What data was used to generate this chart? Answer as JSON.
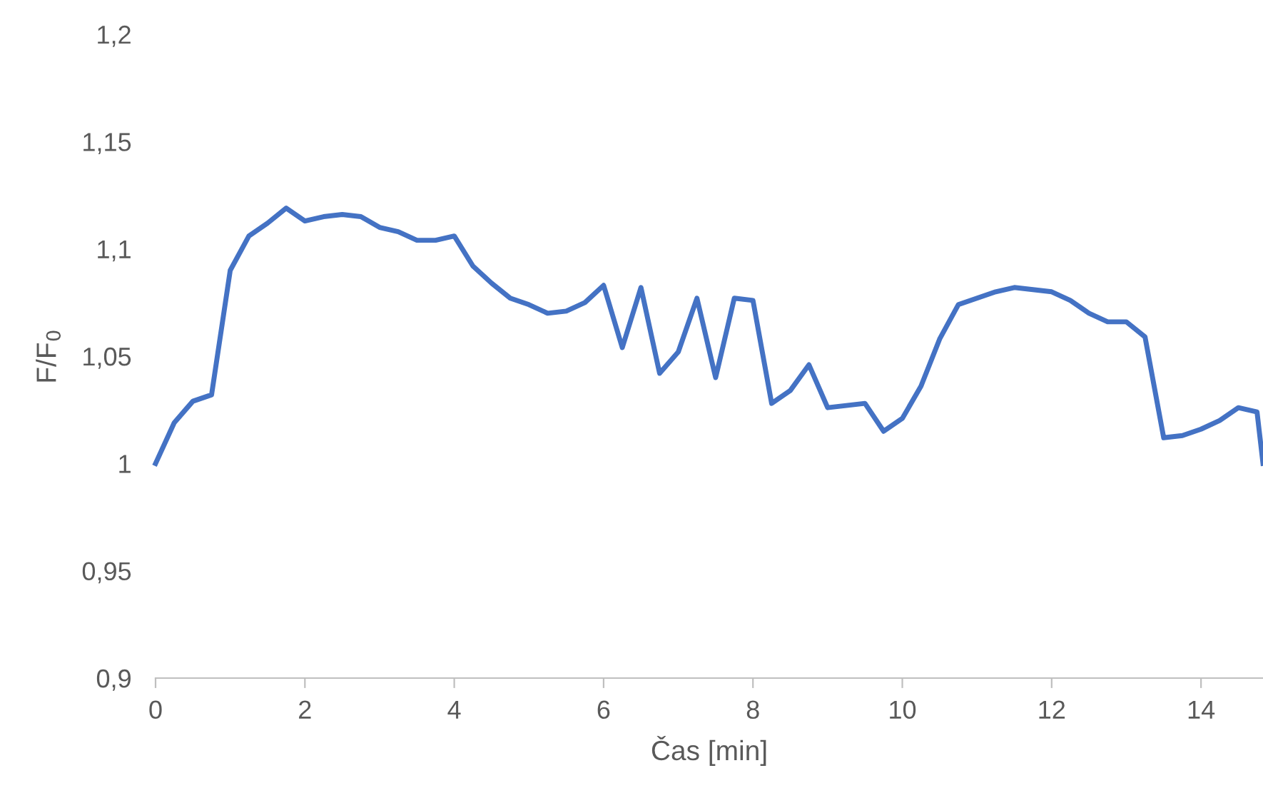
{
  "chart_data": {
    "type": "line",
    "xlabel": "Čas [min]",
    "ylabel": "F/F$_{0}$",
    "x": [
      0,
      0.25,
      0.5,
      0.75,
      1,
      1.25,
      1.5,
      1.75,
      2,
      2.25,
      2.5,
      2.75,
      3,
      3.25,
      3.5,
      3.75,
      4,
      4.25,
      4.5,
      4.75,
      5,
      5.25,
      5.5,
      5.75,
      6,
      6.25,
      6.5,
      6.75,
      7,
      7.25,
      7.5,
      7.75,
      8,
      8.25,
      8.5,
      8.75,
      9,
      9.25,
      9.5,
      9.75,
      10,
      10.25,
      10.5,
      10.75,
      11,
      11.25,
      11.5,
      11.75,
      12,
      12.25,
      12.5,
      12.75,
      13,
      13.25,
      13.5,
      13.75,
      14,
      14.25,
      14.5,
      14.75,
      14.83
    ],
    "series": [
      {
        "color": "#4472c4",
        "values": [
          1.0,
          1.019,
          1.029,
          1.032,
          1.09,
          1.106,
          1.112,
          1.119,
          1.113,
          1.115,
          1.116,
          1.115,
          1.11,
          1.108,
          1.104,
          1.104,
          1.106,
          1.092,
          1.084,
          1.077,
          1.074,
          1.07,
          1.071,
          1.075,
          1.083,
          1.054,
          1.082,
          1.042,
          1.052,
          1.077,
          1.04,
          1.077,
          1.076,
          1.028,
          1.034,
          1.046,
          1.026,
          1.027,
          1.028,
          1.015,
          1.021,
          1.036,
          1.058,
          1.074,
          1.077,
          1.08,
          1.082,
          1.081,
          1.08,
          1.076,
          1.07,
          1.066,
          1.066,
          1.059,
          1.012,
          1.013,
          1.016,
          1.02,
          1.026,
          1.024,
          1.0
        ]
      }
    ],
    "xlim": [
      0,
      14.83
    ],
    "ylim": [
      0.9,
      1.2
    ],
    "xticks": [
      0,
      2,
      4,
      6,
      8,
      10,
      12,
      14
    ],
    "yticks": [
      {
        "value": 0.9,
        "label": "0,9"
      },
      {
        "value": 0.95,
        "label": "0,95"
      },
      {
        "value": 1.0,
        "label": "1"
      },
      {
        "value": 1.05,
        "label": "1,05"
      },
      {
        "value": 1.1,
        "label": "1,1"
      },
      {
        "value": 1.15,
        "label": "1,15"
      },
      {
        "value": 1.2,
        "label": "1,2"
      }
    ],
    "grid": false,
    "legend": false,
    "marker": "none",
    "line_style": "solid"
  }
}
